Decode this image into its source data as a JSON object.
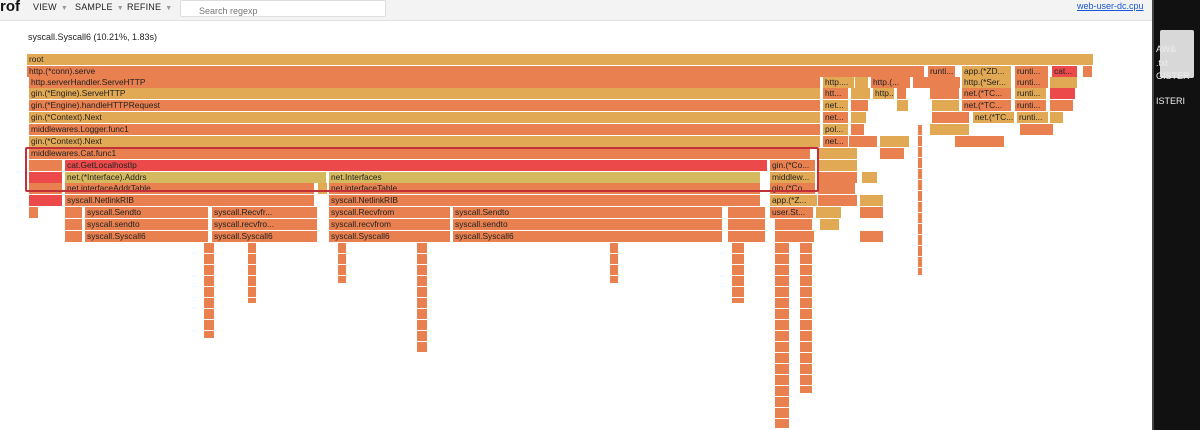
{
  "app": {
    "brand": "rof",
    "profile_link": "web-user-dc.cpu"
  },
  "menu": [
    {
      "label": "VIEW"
    },
    {
      "label": "SAMPLE"
    },
    {
      "label": "REFINE"
    }
  ],
  "search": {
    "placeholder": "Search regexp"
  },
  "status_text": "syscall.Syscall6 (10.21%, 1.83s)",
  "colors": {
    "accent_link": "#1a55d6",
    "highlight_box": "#c2303a",
    "flame_orange": "#e8804f",
    "flame_amber": "#e2a955",
    "flame_yellow": "#d4b95e",
    "flame_red": "#ec4a4a"
  },
  "frames": [
    {
      "label": "root",
      "color": "#e2a955"
    },
    {
      "label": "http.(*conn).serve",
      "color": "#e8804f"
    },
    {
      "label": "http.serverHandler.ServeHTTP",
      "color": "#e8804f"
    },
    {
      "label": "gin.(*Engine).ServeHTTP",
      "color": "#e2a955"
    },
    {
      "label": "gin.(*Engine).handleHTTPRequest",
      "color": "#e8804f"
    },
    {
      "label": "gin.(*Context).Next",
      "color": "#e2a955"
    },
    {
      "label": "middlewares.Logger.func1",
      "color": "#e8804f"
    },
    {
      "label": "gin.(*Context).Next",
      "color": "#e2a955"
    },
    {
      "label": "middlewares.Cat.func1",
      "color": "#e8804f"
    },
    {
      "label": "cat.GetLocalhostIp",
      "color": "#ec4a4a"
    },
    {
      "label": "net.(*Interface).Addrs",
      "color": "#d4b95e"
    },
    {
      "label": "net.Interfaces",
      "color": "#d4b95e"
    },
    {
      "label": "net.interfaceAddrTable",
      "color": "#e8804f"
    },
    {
      "label": "net.interfaceTable",
      "color": "#e8804f"
    },
    {
      "label": "syscall.NetlinkRIB",
      "color": "#e8804f"
    },
    {
      "label": "syscall.NetlinkRIB",
      "color": "#e8804f"
    },
    {
      "label": "syscall.Sendto",
      "color": "#e8804f"
    },
    {
      "label": "syscall.Recvfr...",
      "color": "#e8804f"
    },
    {
      "label": "syscall.Recvfrom",
      "color": "#e8804f"
    },
    {
      "label": "syscall.Sendto",
      "color": "#e8804f"
    },
    {
      "label": "syscall.sendto",
      "color": "#e8804f"
    },
    {
      "label": "syscall.recvfro...",
      "color": "#e8804f"
    },
    {
      "label": "syscall.recvfrom",
      "color": "#e8804f"
    },
    {
      "label": "syscall.sendto",
      "color": "#e8804f"
    },
    {
      "label": "syscall.Syscall6",
      "color": "#e8804f"
    },
    {
      "label": "syscall.Syscall6",
      "color": "#e8804f"
    },
    {
      "label": "syscall.Syscall6",
      "color": "#e8804f"
    },
    {
      "label": "syscall.Syscall6",
      "color": "#e8804f"
    },
    {
      "label": "gin.(*Co...",
      "color": "#e8804f"
    },
    {
      "label": "middlew...",
      "color": "#e2a955"
    },
    {
      "label": "gin.(*Co...",
      "color": "#e8804f"
    },
    {
      "label": "app.(*Z...",
      "color": "#e2a955"
    },
    {
      "label": "user.St...",
      "color": "#e8804f"
    },
    {
      "label": "http....",
      "color": "#e2a955"
    },
    {
      "label": "htt...",
      "color": "#e8804f"
    },
    {
      "label": "net...",
      "color": "#e2a955"
    },
    {
      "label": "net...",
      "color": "#e8804f"
    },
    {
      "label": "pol...",
      "color": "#e2a955"
    },
    {
      "label": "net...",
      "color": "#e8804f"
    },
    {
      "label": "http.(...",
      "color": "#e8804f"
    },
    {
      "label": "http...",
      "color": "#e2a955"
    },
    {
      "label": "runti...",
      "color": "#e8804f"
    },
    {
      "label": "app.(*ZD...",
      "color": "#e2a955"
    },
    {
      "label": "runti...",
      "color": "#e8804f"
    },
    {
      "label": "cat...",
      "color": "#ec4a4a"
    },
    {
      "label": "http.(*Ser...",
      "color": "#e2a955"
    },
    {
      "label": "runti...",
      "color": "#e8804f"
    },
    {
      "label": "net.(*TC...",
      "color": "#e8804f"
    },
    {
      "label": "runti...",
      "color": "#e2a955"
    },
    {
      "label": "net.(*TC...",
      "color": "#e8804f"
    },
    {
      "label": "runti...",
      "color": "#e8804f"
    },
    {
      "label": "net.(*TC...",
      "color": "#e2a955"
    },
    {
      "label": "runti...",
      "color": "#e2a955"
    }
  ],
  "side_panel": {
    "lines": [
      "AW&",
      ".txt",
      "GISTER",
      "ISTERI"
    ]
  }
}
